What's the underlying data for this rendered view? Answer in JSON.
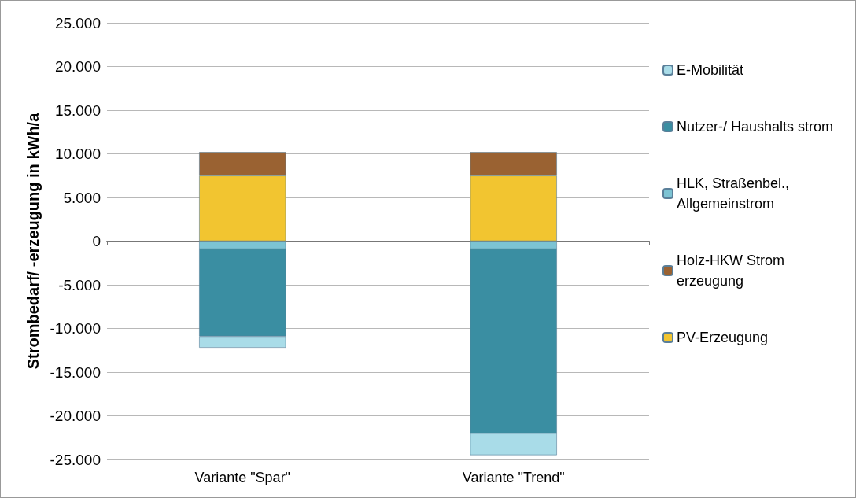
{
  "chart_data": {
    "type": "bar",
    "stacked": true,
    "ylabel": "Strombedarf/ -erzeugung in kWh/a",
    "categories": [
      "Variante \"Spar\"",
      "Variante \"Trend\""
    ],
    "series": [
      {
        "name": "PV-Erzeugung",
        "color": "#f2c530",
        "values": [
          7500,
          7500
        ]
      },
      {
        "name": "Holz-HKW Strom erzeugung",
        "color": "#9a6232",
        "values": [
          2700,
          2700
        ]
      },
      {
        "name": "HLK, Straßenbel., Allgemeinstrom",
        "color": "#7cc3d3",
        "values": [
          -900,
          -900
        ]
      },
      {
        "name": "Nutzer-/ Haushalts strom",
        "color": "#3a8ea2",
        "values": [
          -10000,
          -21100
        ]
      },
      {
        "name": "E-Mobilität",
        "color": "#a9dce8",
        "values": [
          -1300,
          -2500
        ]
      }
    ],
    "ylim": [
      -25000,
      25000
    ],
    "yticks": [
      {
        "value": -25000,
        "label": "-25.000"
      },
      {
        "value": -20000,
        "label": "-20.000"
      },
      {
        "value": -15000,
        "label": "-15.000"
      },
      {
        "value": -10000,
        "label": "-10.000"
      },
      {
        "value": -5000,
        "label": "-5.000"
      },
      {
        "value": 0,
        "label": "0"
      },
      {
        "value": 5000,
        "label": "5.000"
      },
      {
        "value": 10000,
        "label": "10.000"
      },
      {
        "value": 15000,
        "label": "15.000"
      },
      {
        "value": 20000,
        "label": "20.000"
      },
      {
        "value": 25000,
        "label": "25.000"
      }
    ],
    "grid": "y",
    "legend": "right"
  }
}
